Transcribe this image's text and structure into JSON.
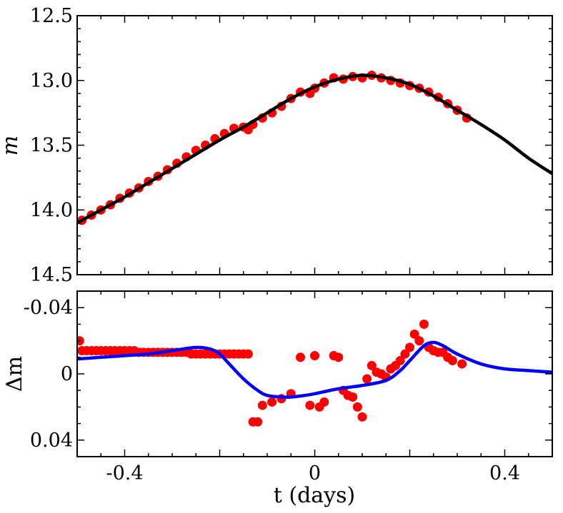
{
  "chart_data": [
    {
      "panel": "top",
      "type": "scatter",
      "ylabel": "m",
      "xlim": [
        -0.5,
        0.5
      ],
      "ylim": [
        14.5,
        12.5
      ],
      "y_inverted": true,
      "yticks": [
        12.5,
        13.0,
        13.5,
        14.0,
        14.5
      ],
      "ytick_labels": [
        "12.5",
        "13.0",
        "13.5",
        "14.0",
        "14.5"
      ],
      "series": [
        {
          "name": "observed",
          "kind": "points",
          "color": "#ff0000",
          "x": [
            -0.49,
            -0.47,
            -0.45,
            -0.43,
            -0.41,
            -0.39,
            -0.37,
            -0.35,
            -0.33,
            -0.31,
            -0.29,
            -0.27,
            -0.25,
            -0.23,
            -0.21,
            -0.19,
            -0.17,
            -0.15,
            -0.14,
            -0.13,
            -0.11,
            -0.09,
            -0.07,
            -0.05,
            -0.03,
            -0.01,
            0.0,
            0.02,
            0.04,
            0.06,
            0.08,
            0.1,
            0.12,
            0.14,
            0.16,
            0.18,
            0.2,
            0.22,
            0.24,
            0.26,
            0.28,
            0.3,
            0.32
          ],
          "y": [
            14.08,
            14.04,
            14.0,
            13.96,
            13.91,
            13.87,
            13.83,
            13.78,
            13.74,
            13.69,
            13.64,
            13.59,
            13.54,
            13.5,
            13.45,
            13.41,
            13.37,
            13.36,
            13.38,
            13.34,
            13.29,
            13.25,
            13.2,
            13.14,
            13.09,
            13.1,
            13.06,
            13.02,
            12.98,
            12.99,
            12.97,
            12.98,
            12.96,
            12.98,
            13.0,
            13.02,
            13.04,
            13.06,
            13.09,
            13.13,
            13.18,
            13.23,
            13.29
          ]
        },
        {
          "name": "model",
          "kind": "line",
          "color": "#000000",
          "x": [
            -0.5,
            -0.45,
            -0.4,
            -0.35,
            -0.3,
            -0.25,
            -0.2,
            -0.15,
            -0.1,
            -0.05,
            0.0,
            0.05,
            0.1,
            0.15,
            0.2,
            0.25,
            0.3,
            0.35,
            0.4,
            0.45,
            0.5
          ],
          "y": [
            14.1,
            14.0,
            13.9,
            13.79,
            13.68,
            13.57,
            13.46,
            13.36,
            13.25,
            13.14,
            13.05,
            12.99,
            12.96,
            12.98,
            13.03,
            13.12,
            13.23,
            13.34,
            13.46,
            13.6,
            13.72
          ]
        }
      ]
    },
    {
      "panel": "bottom",
      "type": "scatter",
      "xlabel": "t (days)",
      "ylabel": "Δm",
      "xlim": [
        -0.5,
        0.5
      ],
      "ylim": [
        0.05,
        -0.05
      ],
      "y_inverted": true,
      "xticks": [
        -0.4,
        0.0,
        0.4
      ],
      "xtick_labels": [
        "-0.4",
        "0",
        "0.4"
      ],
      "yticks": [
        -0.04,
        0.0,
        0.04
      ],
      "ytick_labels": [
        "-0.04",
        "0",
        "0.04"
      ],
      "series": [
        {
          "name": "residuals",
          "kind": "points",
          "color": "#ff0000",
          "x": [
            -0.495,
            -0.49,
            -0.48,
            -0.47,
            -0.46,
            -0.45,
            -0.44,
            -0.43,
            -0.42,
            -0.41,
            -0.4,
            -0.39,
            -0.38,
            -0.37,
            -0.36,
            -0.35,
            -0.34,
            -0.33,
            -0.32,
            -0.31,
            -0.3,
            -0.29,
            -0.28,
            -0.27,
            -0.26,
            -0.25,
            -0.24,
            -0.23,
            -0.22,
            -0.21,
            -0.2,
            -0.19,
            -0.18,
            -0.17,
            -0.16,
            -0.15,
            -0.14,
            -0.13,
            -0.12,
            -0.11,
            -0.09,
            -0.07,
            -0.05,
            -0.03,
            -0.01,
            0.0,
            0.01,
            0.02,
            0.04,
            0.05,
            0.06,
            0.07,
            0.08,
            0.09,
            0.1,
            0.11,
            0.12,
            0.13,
            0.14,
            0.15,
            0.16,
            0.17,
            0.18,
            0.19,
            0.2,
            0.21,
            0.22,
            0.23,
            0.24,
            0.25,
            0.26,
            0.27,
            0.28,
            0.29,
            0.31
          ],
          "y": [
            -0.02,
            -0.014,
            -0.014,
            -0.014,
            -0.014,
            -0.014,
            -0.014,
            -0.014,
            -0.014,
            -0.014,
            -0.014,
            -0.014,
            -0.014,
            -0.013,
            -0.013,
            -0.013,
            -0.013,
            -0.013,
            -0.013,
            -0.013,
            -0.013,
            -0.013,
            -0.013,
            -0.013,
            -0.012,
            -0.012,
            -0.012,
            -0.012,
            -0.012,
            -0.012,
            -0.012,
            -0.012,
            -0.012,
            -0.012,
            -0.012,
            -0.012,
            -0.012,
            0.029,
            0.029,
            0.019,
            0.017,
            0.015,
            0.012,
            -0.01,
            0.019,
            -0.011,
            0.02,
            0.017,
            -0.011,
            -0.01,
            0.01,
            0.013,
            0.014,
            0.02,
            0.026,
            0.003,
            -0.005,
            -0.001,
            0.0,
            0.002,
            -0.003,
            -0.005,
            -0.008,
            -0.012,
            -0.016,
            -0.024,
            -0.02,
            -0.03,
            -0.016,
            -0.014,
            -0.013,
            -0.013,
            -0.01,
            -0.008,
            -0.006
          ]
        },
        {
          "name": "model",
          "kind": "line",
          "color": "#0000ff",
          "x": [
            -0.5,
            -0.45,
            -0.4,
            -0.35,
            -0.3,
            -0.25,
            -0.22,
            -0.2,
            -0.18,
            -0.15,
            -0.12,
            -0.1,
            -0.07,
            -0.05,
            -0.02,
            0.0,
            0.05,
            0.1,
            0.15,
            0.18,
            0.2,
            0.23,
            0.25,
            0.27,
            0.3,
            0.35,
            0.4,
            0.45,
            0.5
          ],
          "y": [
            -0.009,
            -0.01,
            -0.011,
            -0.012,
            -0.014,
            -0.016,
            -0.015,
            -0.012,
            -0.006,
            0.003,
            0.01,
            0.013,
            0.014,
            0.014,
            0.013,
            0.012,
            0.009,
            0.007,
            0.004,
            -0.002,
            -0.008,
            -0.017,
            -0.019,
            -0.017,
            -0.012,
            -0.006,
            -0.003,
            -0.002,
            -0.001
          ]
        }
      ]
    }
  ]
}
